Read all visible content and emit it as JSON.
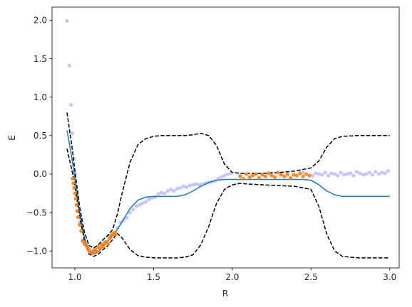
{
  "chart_data": {
    "type": "line",
    "title": "",
    "xlabel": "R",
    "ylabel": "E",
    "xlim": [
      0.855,
      3.06
    ],
    "ylim": [
      -1.22,
      2.17
    ],
    "xticks": [
      1.0,
      1.5,
      2.0,
      2.5,
      3.0
    ],
    "xtick_labels": [
      "1.0",
      "1.5",
      "2.0",
      "2.5",
      "3.0"
    ],
    "yticks": [
      -1.0,
      -0.5,
      0.0,
      0.5,
      1.0,
      1.5,
      2.0
    ],
    "ytick_labels": [
      "−1.0",
      "−0.5",
      "0.0",
      "0.5",
      "1.0",
      "1.5",
      "2.0"
    ],
    "grid": false,
    "legend": "none",
    "series": [
      {
        "kind": "line",
        "color": "#1f77b4",
        "dash": "solid",
        "x": [
          0.95,
          0.98,
          1.0,
          1.03,
          1.06,
          1.09,
          1.12,
          1.15,
          1.18,
          1.21,
          1.24,
          1.27,
          1.3,
          1.35,
          1.4,
          1.45,
          1.5,
          1.55,
          1.6,
          1.65,
          1.7,
          1.75,
          1.8,
          1.85,
          1.9,
          1.95,
          2.0,
          2.05,
          2.1,
          2.2,
          2.3,
          2.4,
          2.45,
          2.5,
          2.55,
          2.6,
          2.65,
          2.7,
          2.8,
          2.9,
          3.0
        ],
        "y": [
          0.57,
          0.22,
          -0.06,
          -0.5,
          -0.82,
          -1.0,
          -1.04,
          -1.01,
          -0.93,
          -0.87,
          -0.8,
          -0.72,
          -0.62,
          -0.45,
          -0.34,
          -0.3,
          -0.29,
          -0.29,
          -0.29,
          -0.29,
          -0.27,
          -0.22,
          -0.16,
          -0.11,
          -0.08,
          -0.07,
          -0.07,
          -0.07,
          -0.07,
          -0.07,
          -0.07,
          -0.07,
          -0.07,
          -0.08,
          -0.14,
          -0.22,
          -0.27,
          -0.29,
          -0.29,
          -0.29,
          -0.29
        ]
      },
      {
        "kind": "line",
        "color": "#000000",
        "dash": "dashed",
        "x": [
          0.95,
          0.98,
          1.0,
          1.03,
          1.06,
          1.09,
          1.12,
          1.15,
          1.18,
          1.21,
          1.24,
          1.27,
          1.3,
          1.35,
          1.4,
          1.45,
          1.5,
          1.55,
          1.6,
          1.65,
          1.7,
          1.75,
          1.8,
          1.85,
          1.9,
          1.95,
          2.0,
          2.05,
          2.1,
          2.2,
          2.3,
          2.4,
          2.45,
          2.5,
          2.55,
          2.6,
          2.65,
          2.7,
          2.8,
          2.9,
          3.0
        ],
        "y": [
          0.8,
          0.38,
          0.05,
          -0.42,
          -0.75,
          -0.93,
          -0.96,
          -0.92,
          -0.85,
          -0.8,
          -0.72,
          -0.52,
          -0.25,
          0.15,
          0.38,
          0.46,
          0.49,
          0.5,
          0.5,
          0.5,
          0.5,
          0.51,
          0.53,
          0.5,
          0.37,
          0.13,
          0.02,
          0.01,
          0.01,
          0.01,
          0.02,
          0.04,
          0.06,
          0.08,
          0.17,
          0.35,
          0.46,
          0.49,
          0.5,
          0.5,
          0.5
        ]
      },
      {
        "kind": "line",
        "color": "#000000",
        "dash": "dashed",
        "x": [
          0.95,
          0.98,
          1.0,
          1.03,
          1.06,
          1.09,
          1.12,
          1.15,
          1.18,
          1.21,
          1.24,
          1.27,
          1.3,
          1.35,
          1.4,
          1.45,
          1.5,
          1.55,
          1.6,
          1.65,
          1.7,
          1.75,
          1.8,
          1.85,
          1.9,
          1.95,
          2.0,
          2.05,
          2.1,
          2.2,
          2.3,
          2.4,
          2.45,
          2.5,
          2.55,
          2.6,
          2.65,
          2.7,
          2.8,
          2.9,
          3.0
        ],
        "y": [
          0.33,
          0.06,
          -0.15,
          -0.55,
          -0.86,
          -1.04,
          -1.07,
          -1.04,
          -0.98,
          -0.93,
          -0.85,
          -0.77,
          -0.83,
          -0.98,
          -1.06,
          -1.08,
          -1.09,
          -1.09,
          -1.09,
          -1.09,
          -1.08,
          -1.05,
          -0.92,
          -0.68,
          -0.38,
          -0.2,
          -0.14,
          -0.12,
          -0.13,
          -0.14,
          -0.15,
          -0.16,
          -0.18,
          -0.2,
          -0.42,
          -0.78,
          -1.0,
          -1.07,
          -1.09,
          -1.09,
          -1.09
        ]
      },
      {
        "kind": "scatter",
        "color": "#8080ff",
        "opacity": 0.45,
        "x": [
          0.95,
          0.965,
          0.975,
          0.985,
          0.995,
          1.0,
          1.01,
          1.02,
          1.03,
          1.05,
          1.07,
          1.09,
          1.11,
          1.13,
          1.15,
          1.17,
          1.19,
          1.21,
          1.23,
          1.25,
          1.27,
          1.29,
          1.31,
          1.33,
          1.35,
          1.37,
          1.39,
          1.41,
          1.43,
          1.45,
          1.47,
          1.49,
          1.51,
          1.53,
          1.55,
          1.57,
          1.59,
          1.61,
          1.63,
          1.65,
          1.67,
          1.69,
          1.71,
          1.73,
          1.75,
          1.77,
          1.79,
          1.81,
          1.83,
          1.85,
          1.87,
          1.89,
          1.91,
          1.93,
          1.95,
          1.97,
          1.99,
          2.05,
          2.15,
          2.25,
          2.35,
          2.45,
          2.51,
          2.53,
          2.55,
          2.57,
          2.59,
          2.61,
          2.63,
          2.65,
          2.67,
          2.69,
          2.71,
          2.73,
          2.75,
          2.77,
          2.79,
          2.81,
          2.83,
          2.85,
          2.87,
          2.89,
          2.91,
          2.93,
          2.95,
          2.97,
          2.99
        ],
        "y": [
          1.99,
          1.41,
          0.9,
          0.53,
          0.2,
          0.0,
          -0.28,
          -0.48,
          -0.62,
          -0.86,
          -0.93,
          -0.98,
          -1.0,
          -1.01,
          -0.95,
          -0.9,
          -0.88,
          -0.8,
          -0.82,
          -0.79,
          -0.7,
          -0.63,
          -0.6,
          -0.57,
          -0.5,
          -0.46,
          -0.42,
          -0.4,
          -0.38,
          -0.36,
          -0.33,
          -0.31,
          -0.3,
          -0.26,
          -0.24,
          -0.25,
          -0.22,
          -0.2,
          -0.22,
          -0.19,
          -0.18,
          -0.16,
          -0.17,
          -0.15,
          -0.14,
          -0.13,
          -0.14,
          -0.13,
          -0.12,
          -0.11,
          -0.1,
          -0.09,
          -0.06,
          -0.04,
          -0.02,
          0.0,
          0.01,
          -0.02,
          0.0,
          0.01,
          -0.01,
          0.02,
          -0.02,
          0.01,
          0.0,
          -0.01,
          0.02,
          -0.02,
          0.01,
          0.0,
          -0.02,
          0.02,
          -0.01,
          0.0,
          0.01,
          -0.02,
          0.03,
          0.01,
          -0.01,
          0.0,
          0.02,
          -0.01,
          0.03,
          0.0,
          0.02,
          0.01,
          0.04
        ]
      },
      {
        "kind": "scatter",
        "color": "#ff7f0e",
        "opacity": 0.9,
        "x": [
          0.985,
          0.99,
          0.995,
          1.0,
          1.005,
          1.01,
          1.015,
          1.02,
          1.03,
          1.04,
          1.05,
          1.06,
          1.07,
          1.08,
          1.09,
          1.1,
          1.11,
          1.12,
          1.13,
          1.14,
          1.15,
          1.16,
          1.17,
          1.18,
          1.19,
          1.2,
          1.21,
          1.22,
          1.23,
          1.24,
          1.25,
          1.26,
          2.05,
          2.07,
          2.09,
          2.11,
          2.13,
          2.15,
          2.17,
          2.19,
          2.21,
          2.23,
          2.25,
          2.27,
          2.29,
          2.31,
          2.33,
          2.35,
          2.37,
          2.39,
          2.41,
          2.43,
          2.45,
          2.47,
          2.49
        ],
        "y": [
          -0.06,
          -0.12,
          -0.18,
          -0.25,
          -0.32,
          -0.4,
          -0.48,
          -0.56,
          -0.66,
          -0.74,
          -0.87,
          -0.9,
          -0.92,
          -0.96,
          -0.99,
          -1.02,
          -1.03,
          -1.0,
          -0.98,
          -1.01,
          -0.95,
          -0.97,
          -0.92,
          -0.94,
          -0.9,
          -0.88,
          -0.9,
          -0.84,
          -0.8,
          -0.78,
          -0.76,
          -0.78,
          -0.03,
          -0.06,
          0.0,
          -0.04,
          -0.02,
          0.0,
          -0.05,
          -0.01,
          -0.03,
          0.01,
          -0.02,
          -0.04,
          0.02,
          -0.01,
          -0.03,
          0.0,
          -0.05,
          -0.01,
          -0.02,
          0.01,
          -0.03,
          0.0,
          -0.02
        ]
      }
    ]
  }
}
